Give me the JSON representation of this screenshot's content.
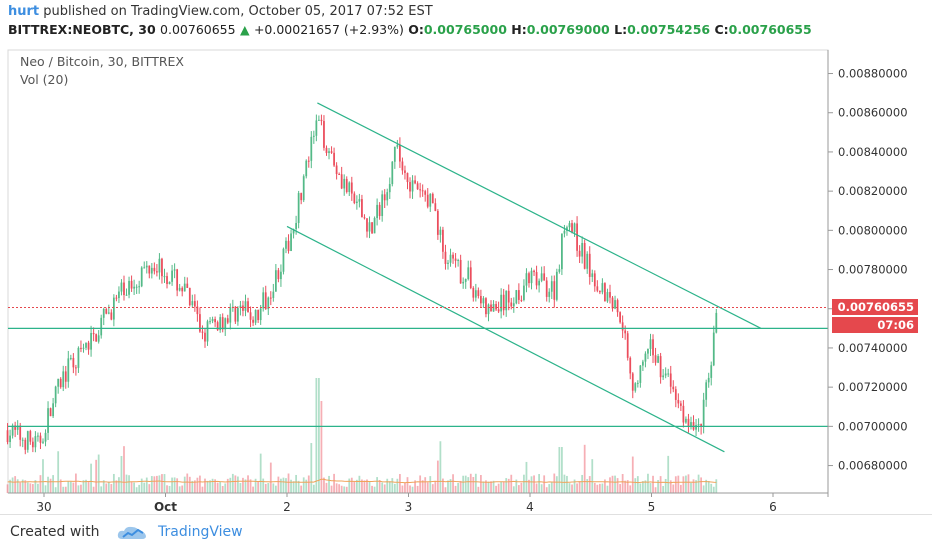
{
  "header": {
    "user": "hurt",
    "published": "published on TradingView.com, October 05, 2017 07:52 EST",
    "symbol": "BITTREX:NEOBTC, 30",
    "last": "0.00760655",
    "change": "+0.00021657 (+2.93%)",
    "o_label": "O:",
    "o_value": "0.00765000",
    "h_label": "H:",
    "h_value": "0.00769000",
    "l_label": "L:",
    "l_value": "0.00754256",
    "c_label": "C:",
    "c_value": "0.00760655"
  },
  "pane": {
    "title": "Neo / Bitcoin, 30, BITTREX",
    "indicator": "Vol (20)"
  },
  "price_tags": {
    "last_price": "0.00760655",
    "countdown": "07:06"
  },
  "footer": {
    "created_with": "Created with",
    "brand": "TradingView"
  },
  "colors": {
    "up": "#53b987",
    "down": "#eb4d5c",
    "trend": "#2cb38a",
    "last_line": "#e5484d",
    "volume_ma": "#f0a35a"
  },
  "chart_data": {
    "type": "candlestick",
    "symbol": "NEOBTC",
    "interval": "30",
    "x_ticks": [
      "30",
      "Oct",
      "2",
      "3",
      "4",
      "5",
      "6"
    ],
    "y_ticks": [
      "0.00880000",
      "0.00860000",
      "0.00840000",
      "0.00820000",
      "0.00800000",
      "0.00780000",
      "0.00760000",
      "0.00740000",
      "0.00720000",
      "0.00700000",
      "0.00680000"
    ],
    "ylim": [
      0.00666,
      0.00892
    ],
    "last_price": 0.00760655,
    "horizontal_levels": [
      0.0075,
      0.007
    ],
    "channel": {
      "upper": [
        {
          "day": 2.25,
          "price": 0.00865
        },
        {
          "day": 5.9,
          "price": 0.0075
        }
      ],
      "lower": [
        {
          "day": 2.0,
          "price": 0.00802
        },
        {
          "day": 5.6,
          "price": 0.00687
        }
      ]
    },
    "price_path": [
      {
        "day": -0.3,
        "price": 0.00698
      },
      {
        "day": -0.05,
        "price": 0.0069
      },
      {
        "day": 0.15,
        "price": 0.00725
      },
      {
        "day": 0.35,
        "price": 0.0074
      },
      {
        "day": 0.6,
        "price": 0.00765
      },
      {
        "day": 0.9,
        "price": 0.00785
      },
      {
        "day": 1.15,
        "price": 0.0077
      },
      {
        "day": 1.3,
        "price": 0.00748
      },
      {
        "day": 1.6,
        "price": 0.0076
      },
      {
        "day": 1.75,
        "price": 0.00755
      },
      {
        "day": 2.0,
        "price": 0.0079
      },
      {
        "day": 2.25,
        "price": 0.00855
      },
      {
        "day": 2.5,
        "price": 0.0082
      },
      {
        "day": 2.7,
        "price": 0.008
      },
      {
        "day": 2.9,
        "price": 0.0084
      },
      {
        "day": 3.05,
        "price": 0.0082
      },
      {
        "day": 3.2,
        "price": 0.00815
      },
      {
        "day": 3.3,
        "price": 0.00785
      },
      {
        "day": 3.5,
        "price": 0.00775
      },
      {
        "day": 3.65,
        "price": 0.00758
      },
      {
        "day": 3.85,
        "price": 0.00765
      },
      {
        "day": 4.0,
        "price": 0.00775
      },
      {
        "day": 4.2,
        "price": 0.0077
      },
      {
        "day": 4.3,
        "price": 0.00808
      },
      {
        "day": 4.45,
        "price": 0.00785
      },
      {
        "day": 4.6,
        "price": 0.0077
      },
      {
        "day": 4.75,
        "price": 0.00758
      },
      {
        "day": 4.85,
        "price": 0.0072
      },
      {
        "day": 5.0,
        "price": 0.0074
      },
      {
        "day": 5.2,
        "price": 0.00715
      },
      {
        "day": 5.32,
        "price": 0.00698
      },
      {
        "day": 5.42,
        "price": 0.00705
      },
      {
        "day": 5.5,
        "price": 0.0074
      },
      {
        "day": 5.55,
        "price": 0.00766
      }
    ],
    "volume_spikes": [
      {
        "day": 2.25,
        "volume": 1.0
      },
      {
        "day": 2.28,
        "volume": 0.8
      },
      {
        "day": 3.25,
        "volume": 0.45
      },
      {
        "day": 4.25,
        "volume": 0.4
      },
      {
        "day": 5.55,
        "volume": 0.35
      }
    ]
  }
}
